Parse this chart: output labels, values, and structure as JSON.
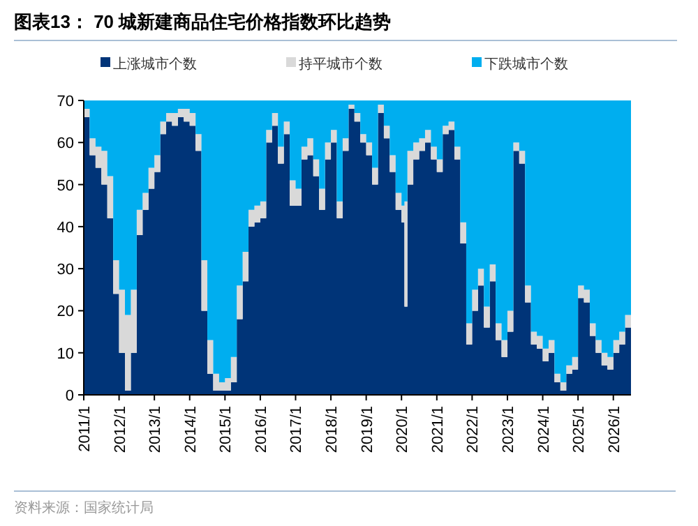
{
  "chart_data": {
    "type": "area",
    "stacked": true,
    "title": "图表13：  70 城新建商品住宅价格指数环比趋势",
    "annotations": [
      "资料来源：国家统计局"
    ],
    "legend": "top",
    "grid": false,
    "x": [
      "2011-01",
      "2011-03",
      "2011-05",
      "2011-07",
      "2011-09",
      "2011-11",
      "2012-01",
      "2012-03",
      "2012-05",
      "2012-07",
      "2012-09",
      "2012-11",
      "2013-01",
      "2013-03",
      "2013-05",
      "2013-07",
      "2013-09",
      "2013-11",
      "2014-01",
      "2014-03",
      "2014-05",
      "2014-07",
      "2014-09",
      "2014-11",
      "2015-01",
      "2015-03",
      "2015-05",
      "2015-07",
      "2015-09",
      "2015-11",
      "2016-01",
      "2016-03",
      "2016-05",
      "2016-07",
      "2016-09",
      "2016-11",
      "2017-01",
      "2017-03",
      "2017-05",
      "2017-07",
      "2017-09",
      "2017-11",
      "2018-01",
      "2018-03",
      "2018-05",
      "2018-07",
      "2018-09",
      "2018-11",
      "2019-01",
      "2019-03",
      "2019-05",
      "2019-07",
      "2019-09",
      "2019-11",
      "2020-01",
      "2020-02",
      "2020-03",
      "2020-05",
      "2020-07",
      "2020-09",
      "2020-11",
      "2021-01",
      "2021-03",
      "2021-05",
      "2021-07",
      "2021-09",
      "2021-11",
      "2022-01",
      "2022-03",
      "2022-05",
      "2022-07",
      "2022-09",
      "2022-11",
      "2023-01",
      "2023-03",
      "2023-05",
      "2023-07",
      "2023-09",
      "2023-11",
      "2024-01",
      "2024-03",
      "2024-05",
      "2024-07",
      "2024-09",
      "2024-11",
      "2025-01",
      "2025-03",
      "2025-05",
      "2025-07",
      "2025-09",
      "2025-11",
      "2026-01",
      "2026-03",
      "2026-05",
      "2026-07"
    ],
    "series": [
      {
        "name": "上涨城市个数",
        "color": "#003478",
        "values": [
          66,
          57,
          54,
          50,
          42,
          24,
          10,
          1,
          10,
          38,
          44,
          49,
          53,
          62,
          65,
          64,
          66,
          65,
          64,
          58,
          20,
          5,
          1,
          1,
          1,
          3,
          18,
          27,
          40,
          41,
          42,
          60,
          64,
          55,
          62,
          45,
          45,
          56,
          57,
          52,
          44,
          56,
          60,
          42,
          58,
          68,
          65,
          60,
          57,
          50,
          67,
          61,
          53,
          44,
          41,
          21,
          50,
          56,
          58,
          60,
          56,
          53,
          62,
          63,
          56,
          36,
          12,
          20,
          26,
          16,
          27,
          13,
          9,
          15,
          58,
          55,
          22,
          12,
          11,
          8,
          10,
          3,
          1,
          5,
          6,
          23,
          22,
          14,
          10,
          7,
          6,
          10,
          12,
          16,
          3
        ]
      },
      {
        "name": "持平城市个数",
        "color": "#d9d9d9",
        "values": [
          2,
          4,
          5,
          8,
          10,
          8,
          15,
          18,
          15,
          6,
          4,
          5,
          4,
          3,
          2,
          3,
          2,
          3,
          3,
          4,
          12,
          8,
          4,
          2,
          3,
          6,
          8,
          7,
          4,
          4,
          4,
          3,
          3,
          4,
          3,
          6,
          4,
          3,
          4,
          4,
          5,
          4,
          3,
          4,
          3,
          1,
          2,
          2,
          3,
          4,
          2,
          3,
          4,
          4,
          4,
          25,
          8,
          4,
          3,
          3,
          3,
          3,
          2,
          2,
          3,
          5,
          5,
          5,
          4,
          5,
          4,
          4,
          4,
          5,
          2,
          3,
          4,
          3,
          3,
          3,
          3,
          2,
          2,
          2,
          3,
          3,
          3,
          3,
          3,
          3,
          3,
          3,
          3,
          3,
          2
        ]
      },
      {
        "name": "下跌城市个数",
        "color": "#00aeef",
        "values": [
          2,
          9,
          11,
          12,
          18,
          38,
          45,
          51,
          45,
          26,
          22,
          16,
          13,
          5,
          3,
          3,
          2,
          2,
          3,
          8,
          38,
          57,
          65,
          67,
          66,
          61,
          44,
          36,
          26,
          25,
          24,
          7,
          3,
          11,
          5,
          19,
          21,
          11,
          9,
          14,
          21,
          10,
          7,
          24,
          9,
          1,
          3,
          8,
          10,
          16,
          1,
          6,
          13,
          22,
          25,
          24,
          12,
          10,
          9,
          7,
          11,
          14,
          6,
          5,
          11,
          29,
          53,
          45,
          40,
          49,
          39,
          53,
          57,
          50,
          10,
          12,
          44,
          55,
          56,
          59,
          57,
          65,
          67,
          63,
          61,
          44,
          45,
          53,
          57,
          60,
          61,
          57,
          55,
          51,
          65
        ]
      }
    ],
    "xlim": [
      "2011-01",
      "2026-07"
    ],
    "xticks": [
      {
        "value": "2011-01",
        "label": "2011/1"
      },
      {
        "value": "2012-01",
        "label": "2012/1"
      },
      {
        "value": "2013-01",
        "label": "2013/1"
      },
      {
        "value": "2014-01",
        "label": "2014/1"
      },
      {
        "value": "2015-01",
        "label": "2015/1"
      },
      {
        "value": "2016-01",
        "label": "2016/1"
      },
      {
        "value": "2017-01",
        "label": "2017/1"
      },
      {
        "value": "2018-01",
        "label": "2018/1"
      },
      {
        "value": "2019-01",
        "label": "2019/1"
      },
      {
        "value": "2020-01",
        "label": "2020/1"
      },
      {
        "value": "2021-01",
        "label": "2021/1"
      },
      {
        "value": "2022-01",
        "label": "2022/1"
      },
      {
        "value": "2023-01",
        "label": "2023/1"
      },
      {
        "value": "2024-01",
        "label": "2024/1"
      },
      {
        "value": "2025-01",
        "label": "2025/1"
      },
      {
        "value": "2026-01",
        "label": "2026/1"
      }
    ],
    "ylim": [
      0,
      70
    ],
    "yticks": [
      0,
      10,
      20,
      30,
      40,
      50,
      60,
      70
    ]
  }
}
